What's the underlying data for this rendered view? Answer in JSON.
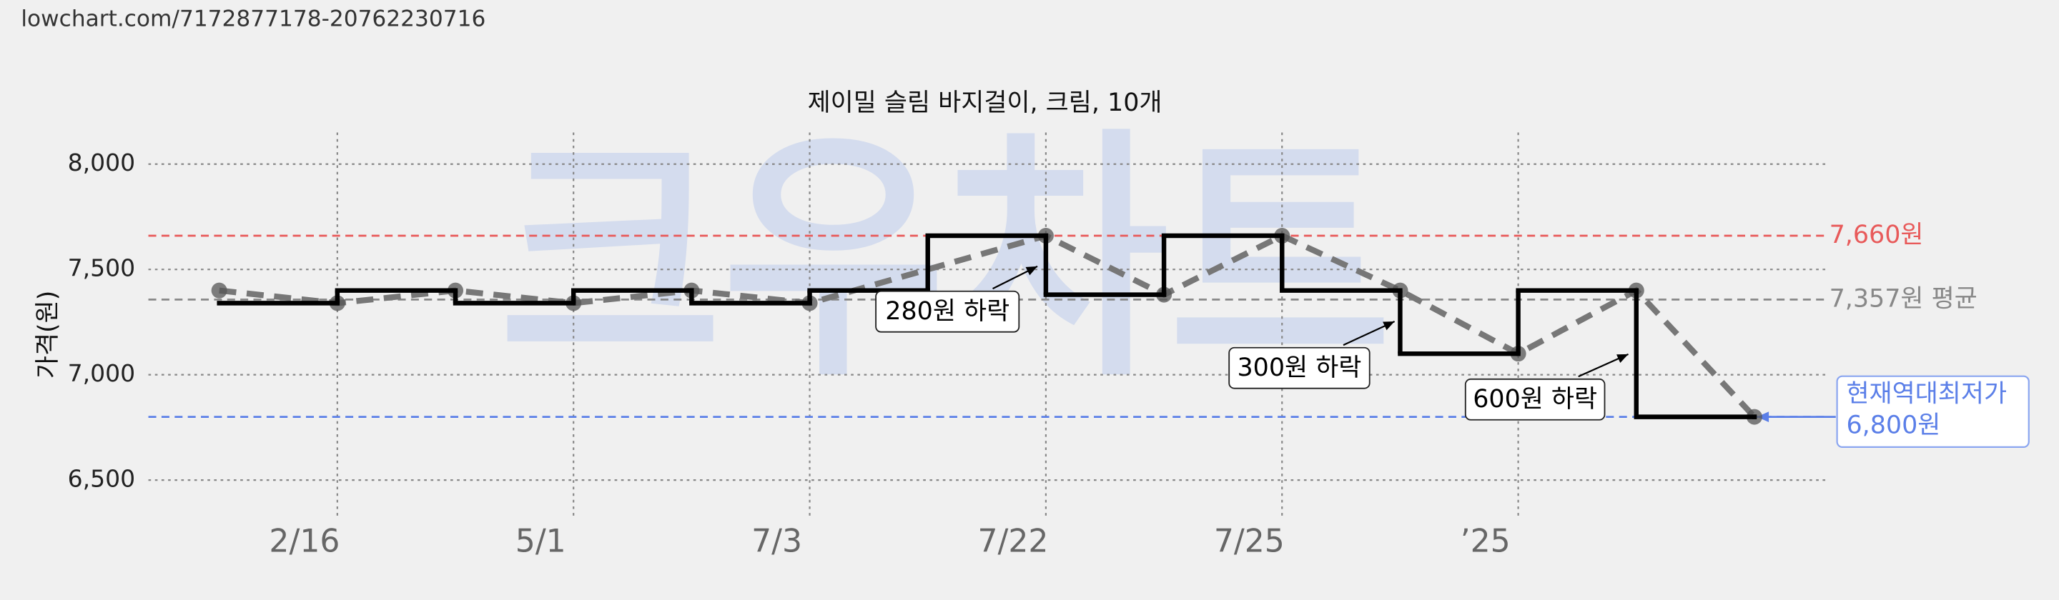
{
  "header": {
    "url": "lowchart.com/7172877178-20762230716"
  },
  "watermark": "크우차트",
  "chart_data": {
    "type": "step-line",
    "title": "제이밀 슬림 바지걸이, 크림, 10개",
    "y_label": "가격(원)",
    "ylim": [
      6350,
      8150
    ],
    "yticks": [
      {
        "value": 6500,
        "label": "6,500"
      },
      {
        "value": 7000,
        "label": "7,000"
      },
      {
        "value": 7500,
        "label": "7,500"
      },
      {
        "value": 8000,
        "label": "8,000"
      }
    ],
    "xlim": [
      -0.6,
      13.6
    ],
    "xticks": [
      {
        "value": 1,
        "label": "2/16"
      },
      {
        "value": 3,
        "label": "5/1"
      },
      {
        "value": 5,
        "label": "7/3"
      },
      {
        "value": 7,
        "label": "7/22"
      },
      {
        "value": 9,
        "label": "7/25"
      },
      {
        "value": 11,
        "label": "’25"
      }
    ],
    "grid": true,
    "series": [
      {
        "style": "step",
        "color": "#000000",
        "x": [
          0,
          1,
          2,
          3,
          4,
          5,
          6,
          7,
          8,
          9,
          10,
          11,
          12,
          13
        ],
        "values": [
          7340,
          7400,
          7340,
          7400,
          7340,
          7400,
          7660,
          7380,
          7660,
          7400,
          7100,
          7400,
          6800,
          6800
        ]
      },
      {
        "style": "dashed-points",
        "color": "#777777",
        "x": [
          0,
          1,
          2,
          3,
          4,
          5,
          7,
          8,
          9,
          10,
          11,
          12,
          13
        ],
        "values": [
          7400,
          7340,
          7400,
          7340,
          7400,
          7340,
          7660,
          7380,
          7660,
          7400,
          7100,
          7400,
          6800
        ]
      }
    ],
    "reference_lines": [
      {
        "value": 7660,
        "label": "7,660원",
        "color": "#e85a5a"
      },
      {
        "value": 7357,
        "label": "7,357원 평균",
        "color": "#888888"
      },
      {
        "value": 6800,
        "label": [
          "현재역대최저가",
          "6,800원"
        ],
        "color": "#5b7fe8"
      }
    ],
    "annotations": [
      "280원 하락",
      "300원 하락",
      "600원 하락"
    ]
  }
}
